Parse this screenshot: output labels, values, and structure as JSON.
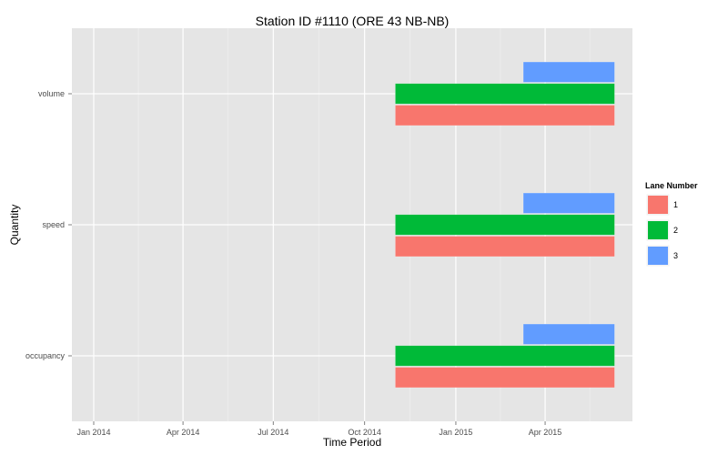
{
  "chart_data": {
    "type": "bar",
    "orientation": "horizontal",
    "title": "Station ID #1110 (ORE 43 NB-NB)",
    "xlabel": "Time Period",
    "ylabel": "Quantity",
    "x_ticks": [
      "2014-01-01",
      "2014-04-01",
      "2014-07-01",
      "2014-10-01",
      "2015-01-01",
      "2015-04-01"
    ],
    "x_tick_labels": [
      "Jan 2014",
      "Apr 2014",
      "Jul 2014",
      "Oct 2014",
      "Jan 2015",
      "Apr 2015"
    ],
    "xlim": [
      "2013-12-10",
      "2015-06-28"
    ],
    "categories": [
      "occupancy",
      "speed",
      "volume"
    ],
    "legend": {
      "title": "Lane Number",
      "position": "right"
    },
    "grid": true,
    "series": [
      {
        "name": "1",
        "color": "#F8766D",
        "bars": [
          {
            "category": "occupancy",
            "start": "2014-11-01",
            "end": "2015-06-10"
          },
          {
            "category": "speed",
            "start": "2014-11-01",
            "end": "2015-06-10"
          },
          {
            "category": "volume",
            "start": "2014-11-01",
            "end": "2015-06-10"
          }
        ]
      },
      {
        "name": "2",
        "color": "#00BA38",
        "bars": [
          {
            "category": "occupancy",
            "start": "2014-11-01",
            "end": "2015-06-10"
          },
          {
            "category": "speed",
            "start": "2014-11-01",
            "end": "2015-06-10"
          },
          {
            "category": "volume",
            "start": "2014-11-01",
            "end": "2015-06-10"
          }
        ]
      },
      {
        "name": "3",
        "color": "#619CFF",
        "bars": [
          {
            "category": "occupancy",
            "start": "2015-03-10",
            "end": "2015-06-10"
          },
          {
            "category": "speed",
            "start": "2015-03-10",
            "end": "2015-06-10"
          },
          {
            "category": "volume",
            "start": "2015-03-10",
            "end": "2015-06-10"
          }
        ]
      }
    ]
  }
}
